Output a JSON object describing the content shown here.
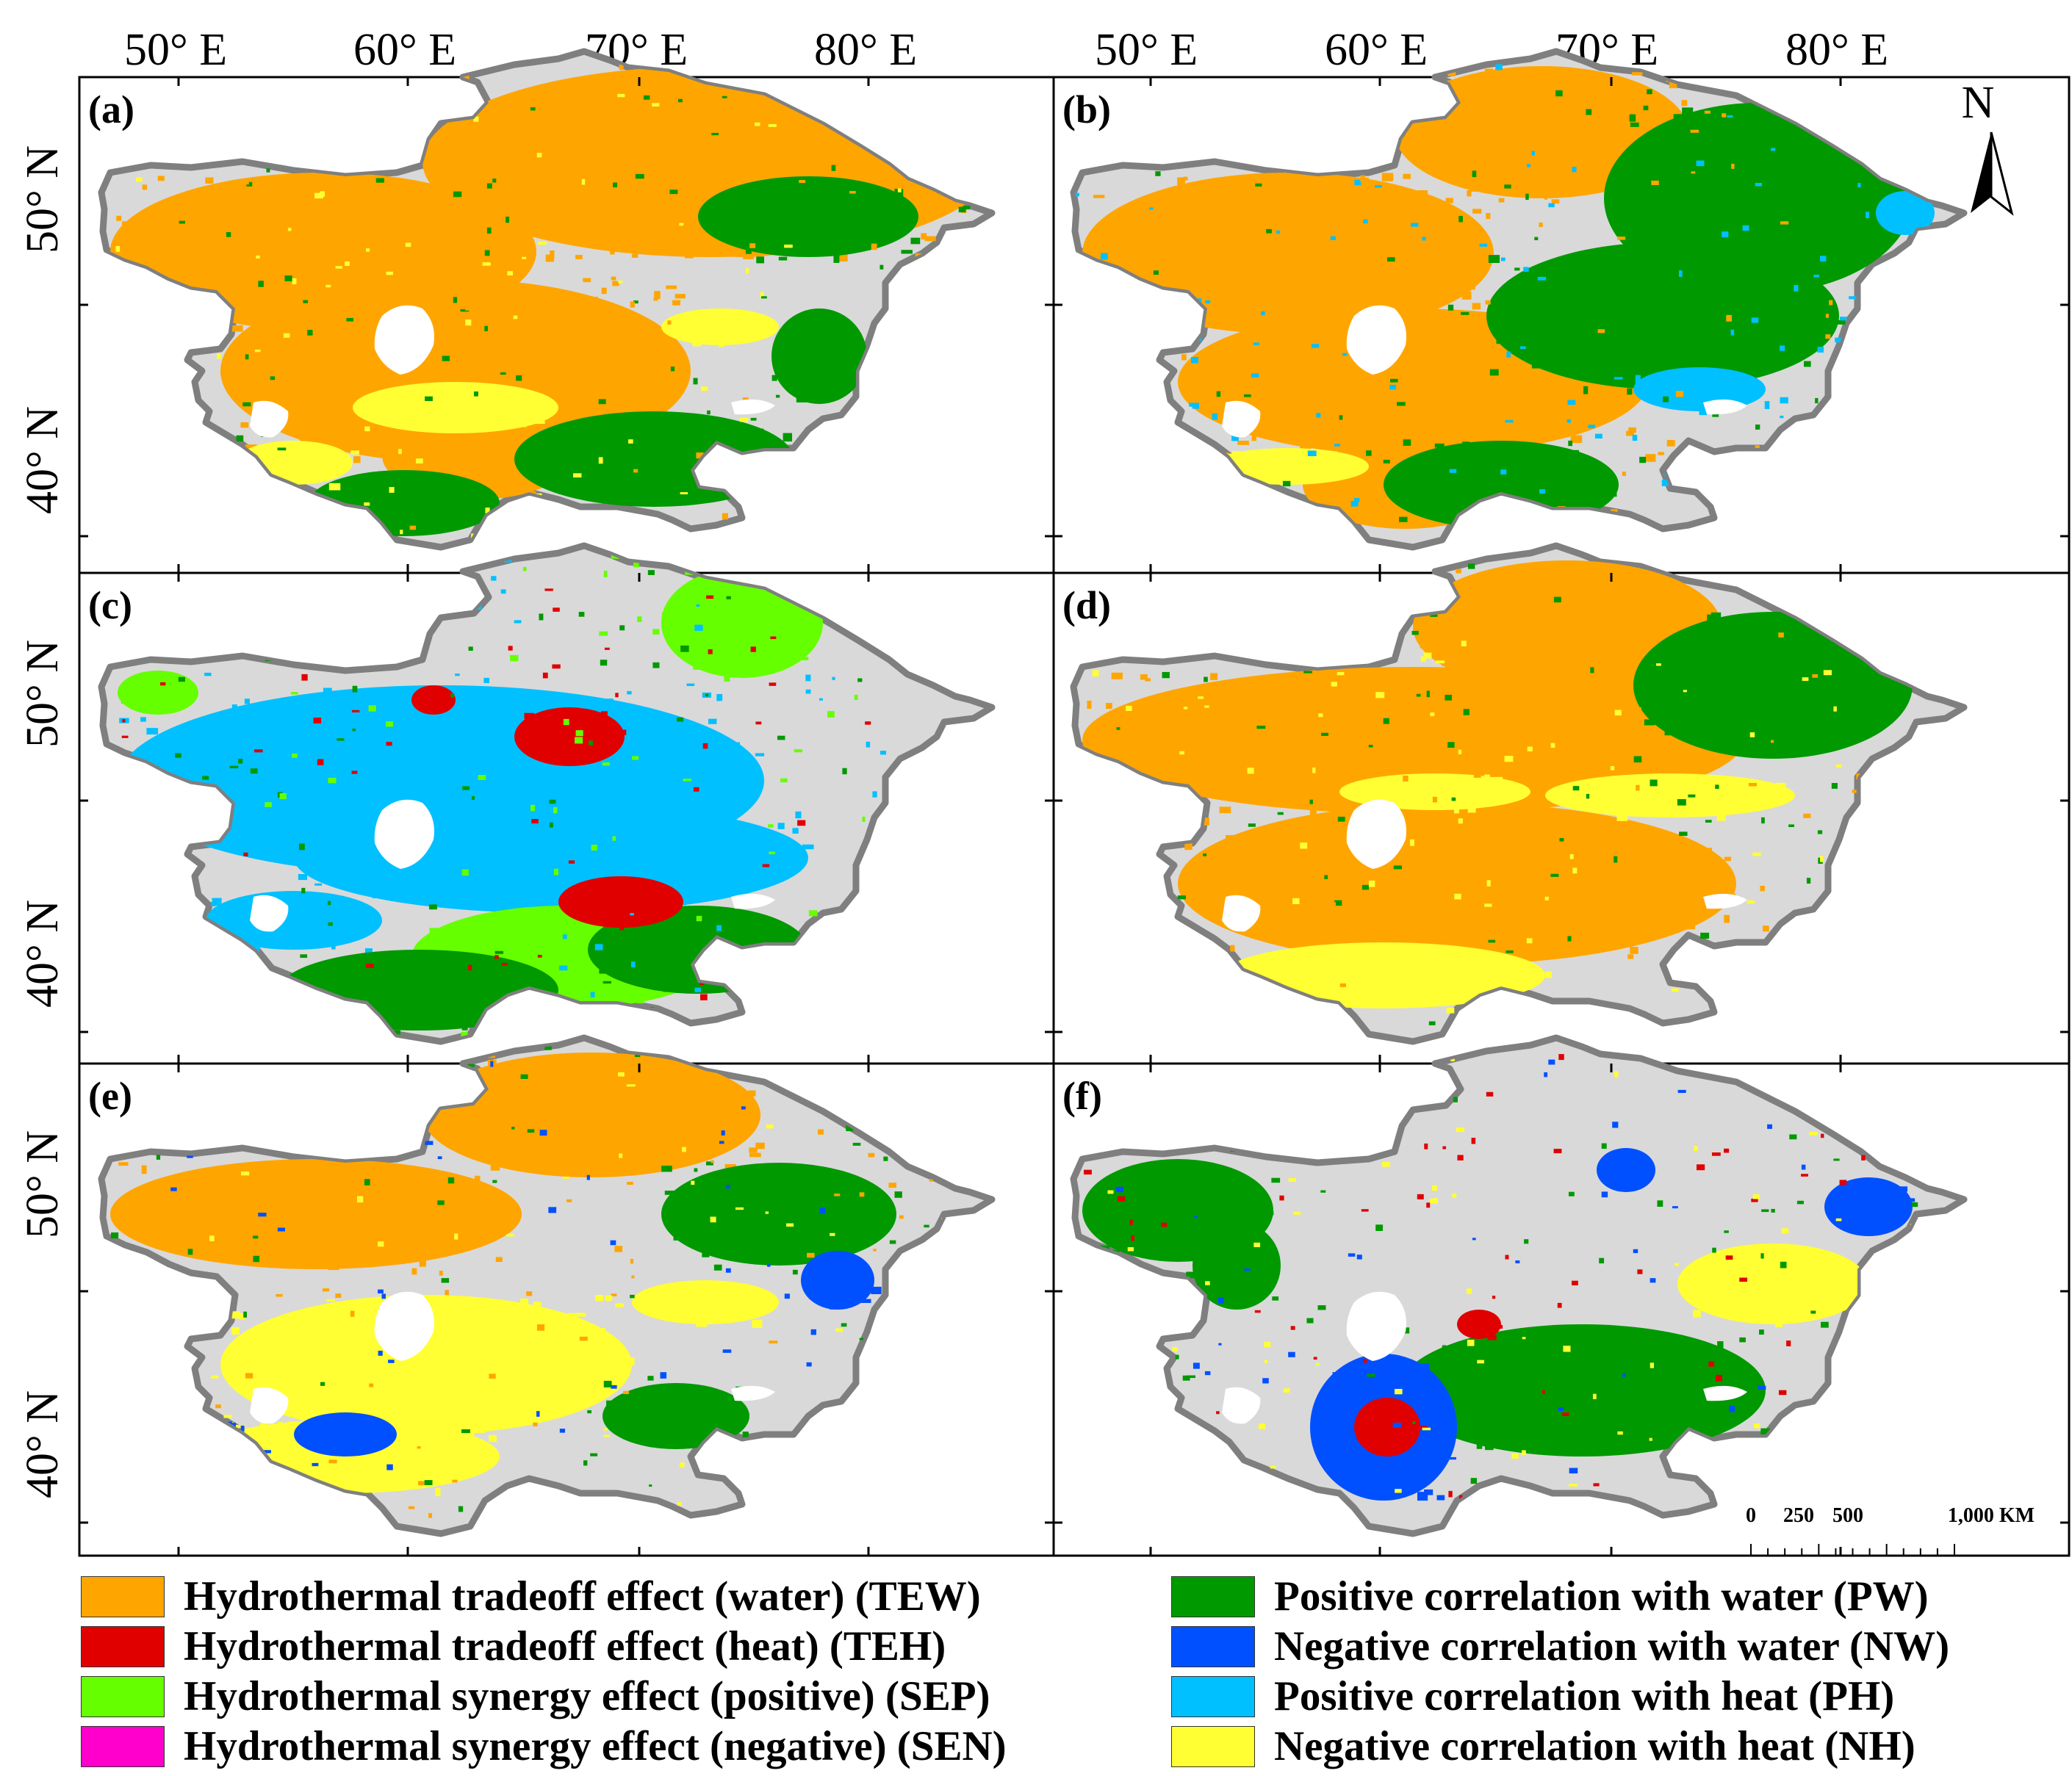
{
  "figure": {
    "top_longitude_labels": [
      "50° E",
      "60° E",
      "70° E",
      "80° E"
    ],
    "side_latitude_labels": [
      "50° N",
      "40° N"
    ],
    "north_arrow_label": "N",
    "scale_bar": {
      "labels": [
        "0",
        "250",
        "500",
        "1,000 KM"
      ]
    }
  },
  "panels": [
    {
      "id": "a",
      "label": "(a)",
      "dominant_classes": [
        "TEW",
        "PW",
        "NH"
      ]
    },
    {
      "id": "b",
      "label": "(b)",
      "dominant_classes": [
        "TEW",
        "PW",
        "PH"
      ]
    },
    {
      "id": "c",
      "label": "(c)",
      "dominant_classes": [
        "PH",
        "SEP",
        "PW",
        "TEH"
      ]
    },
    {
      "id": "d",
      "label": "(d)",
      "dominant_classes": [
        "TEW",
        "NH",
        "PW"
      ]
    },
    {
      "id": "e",
      "label": "(e)",
      "dominant_classes": [
        "TEW",
        "NH",
        "PW",
        "NW"
      ]
    },
    {
      "id": "f",
      "label": "(f)",
      "dominant_classes": [
        "PW",
        "NW",
        "TEH",
        "NH"
      ]
    }
  ],
  "legend": {
    "items": [
      {
        "code": "TEW",
        "label": "Hydrothermal tradeoff effect (water) (TEW)",
        "color": "#ffa500"
      },
      {
        "code": "TEH",
        "label": "Hydrothermal tradeoff effect (heat) (TEH)",
        "color": "#e00000"
      },
      {
        "code": "SEP",
        "label": "Hydrothermal synergy effect (positive) (SEP)",
        "color": "#66ff00"
      },
      {
        "code": "SEN",
        "label": "Hydrothermal synergy effect (negative) (SEN)",
        "color": "#ff00cc"
      },
      {
        "code": "PW",
        "label": "Positive correlation with water (PW)",
        "color": "#009900"
      },
      {
        "code": "NW",
        "label": "Negative correlation with water (NW)",
        "color": "#0050ff"
      },
      {
        "code": "PH",
        "label": "Positive correlation with heat (PH)",
        "color": "#00c0ff"
      },
      {
        "code": "NH",
        "label": "Negative correlation with heat (NH)",
        "color": "#ffff33"
      }
    ]
  },
  "colors": {
    "background": "#d9d9d9",
    "outline": "#7f7f7f"
  }
}
